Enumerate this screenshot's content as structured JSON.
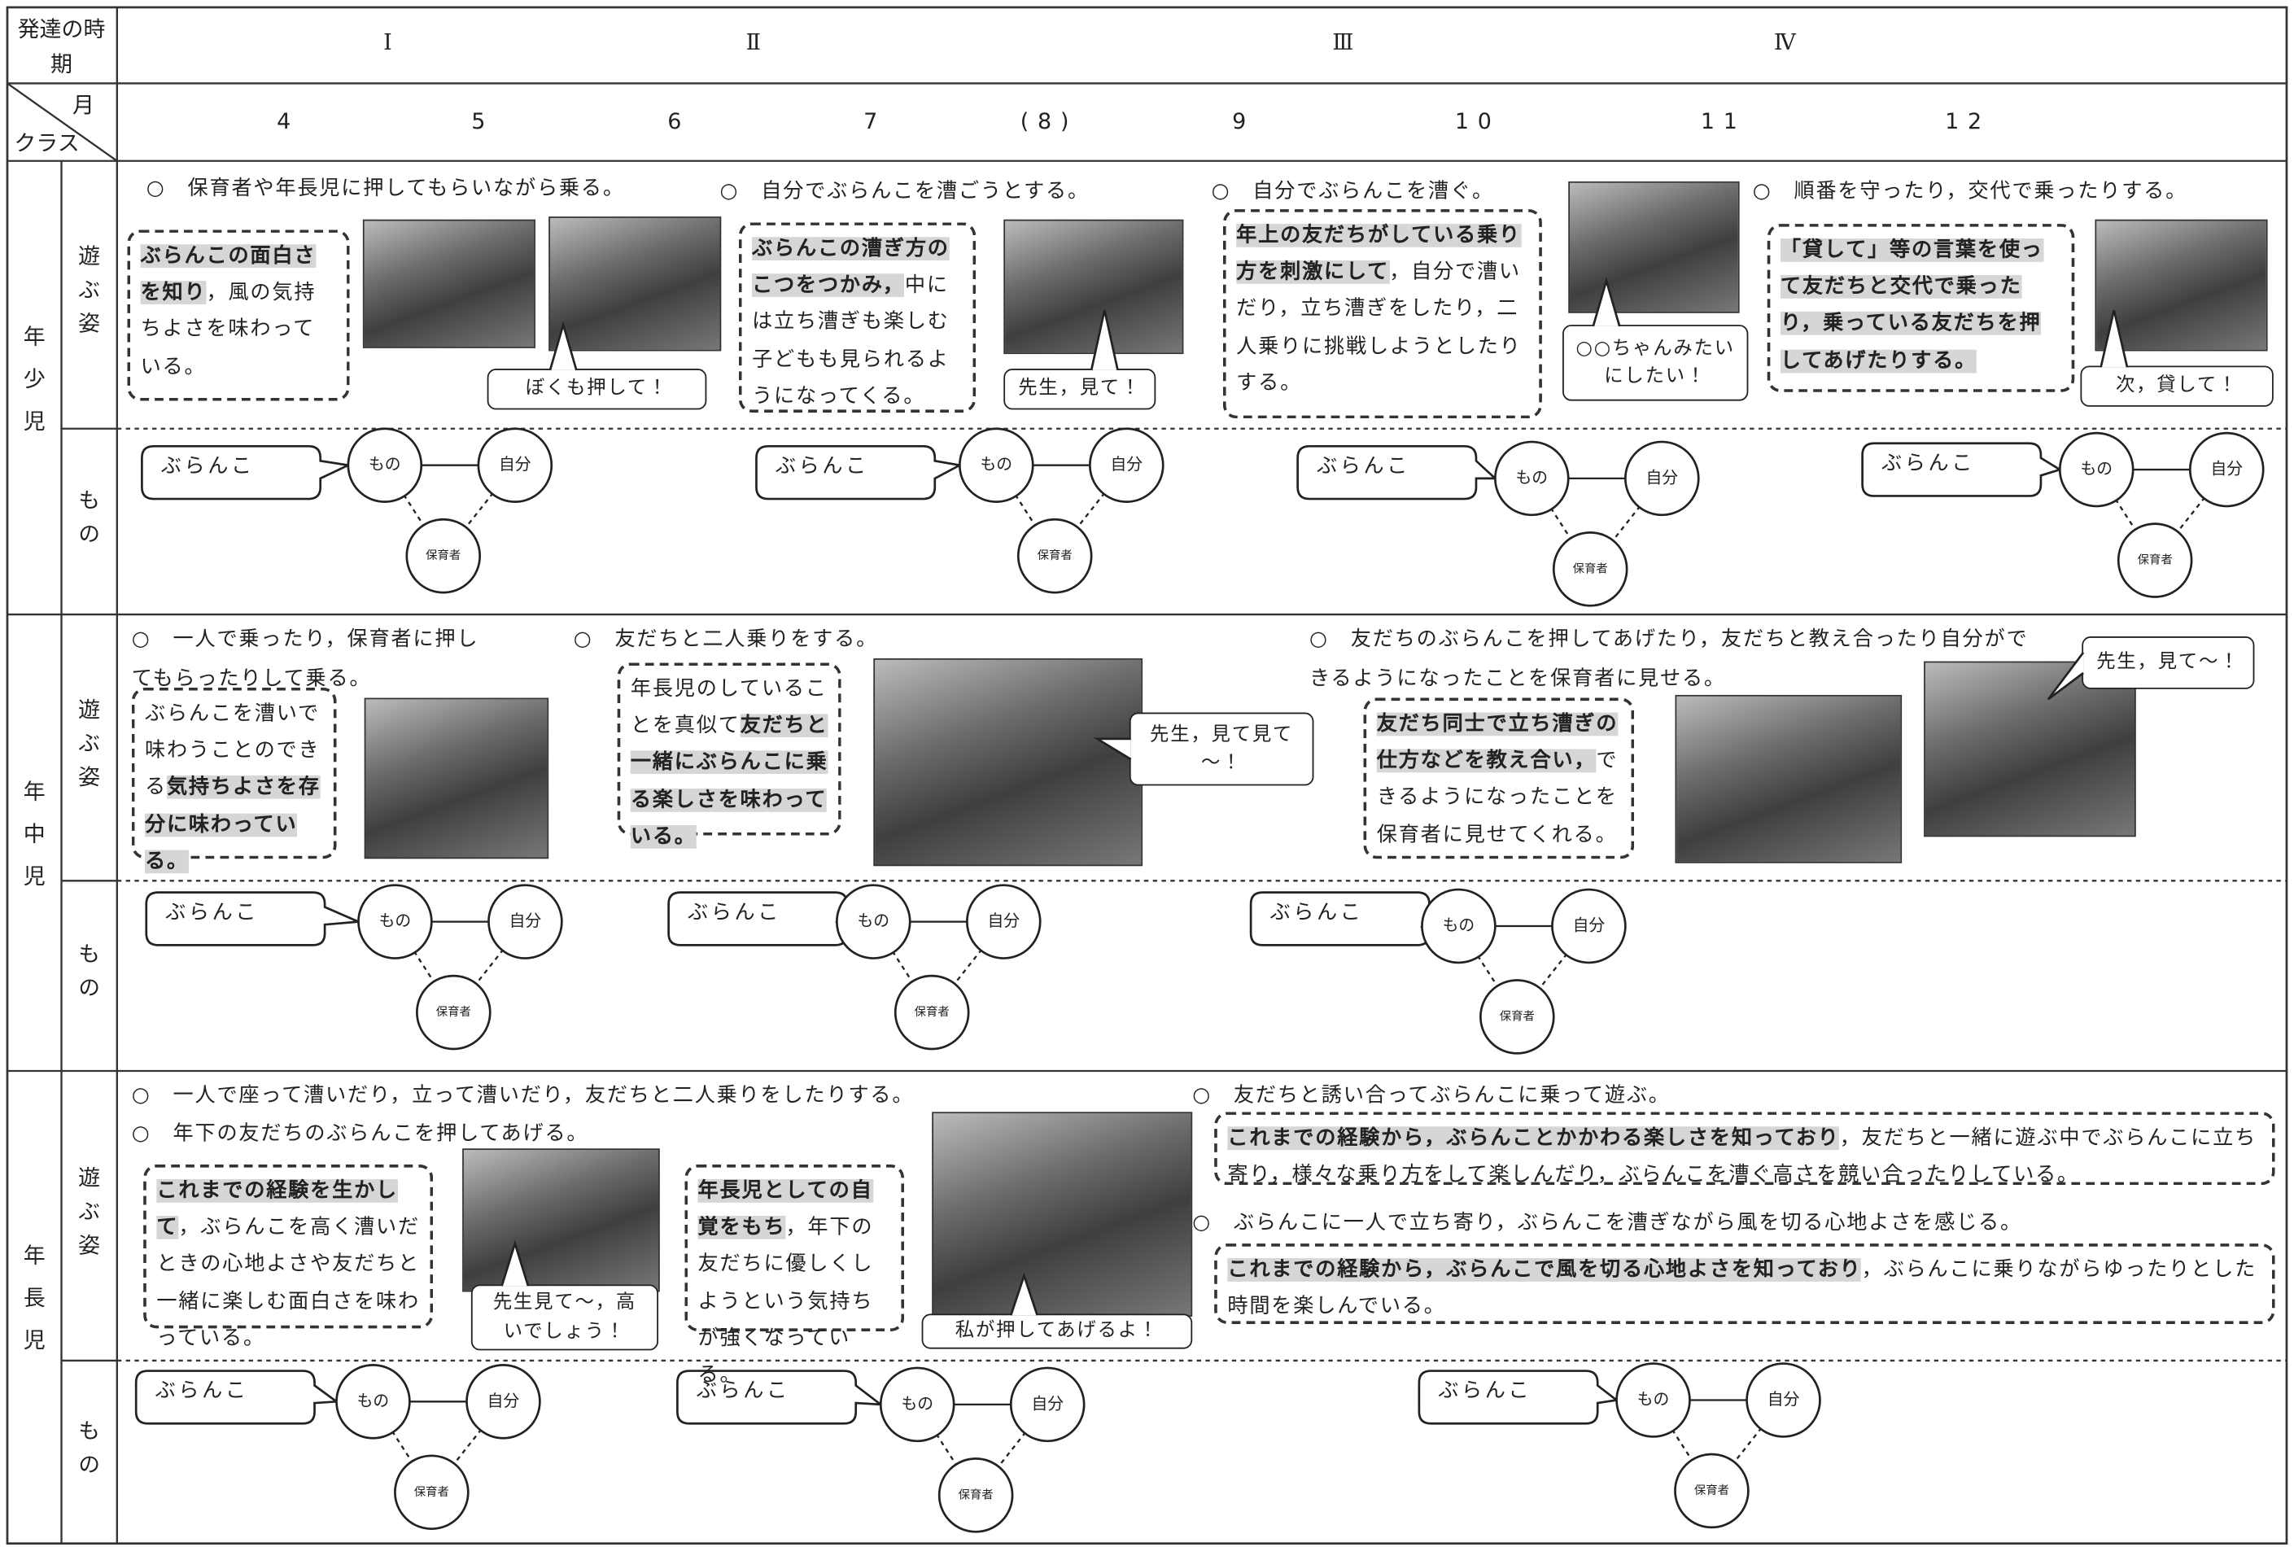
{
  "header": {
    "period_label": "発達の時期",
    "periods": [
      "Ⅰ",
      "Ⅱ",
      "Ⅲ",
      "Ⅳ"
    ],
    "month_label": "月",
    "class_label": "クラス",
    "months": [
      "4",
      "5",
      "6",
      "7",
      "(8)",
      "9",
      "10",
      "11",
      "12"
    ]
  },
  "classes": [
    {
      "name": "年少児",
      "play_label": "遊ぶ姿",
      "mono_label": "もの",
      "bullets": [
        "○　保育者や年長児に押してもらいながら乗る。",
        "○　自分でぶらんこを漕ごうとする。",
        "○　自分でぶらんこを漕ぐ。",
        "○　順番を守ったり，交代で乗ったりする。"
      ],
      "boxes": [
        [
          {
            "text": "ぶらんこの面白さを知り",
            "bold": true
          },
          {
            "text": "，風の気持ちよさを味わっている。",
            "bold": false
          }
        ],
        [
          {
            "text": "ぶらんこの漕ぎ方のこつをつかみ，",
            "bold": true
          },
          {
            "text": "中には立ち漕ぎも楽しむ子どもも見られるようになってくる。",
            "bold": false
          }
        ],
        [
          {
            "text": "年上の友だちがしている乗り方を刺激にして",
            "bold": true
          },
          {
            "text": "，自分で漕いだり，立ち漕ぎをしたり，二人乗りに挑戦しようとしたりする。",
            "bold": false
          }
        ],
        [
          {
            "text": "「貸して」等の言葉を使って友だちと交代で乗ったり，乗っている友だちを押してあげたりする。",
            "bold": true
          }
        ]
      ],
      "bubbles": [
        "ぼくも押して！",
        "先生，見て！",
        "○○ちゃんみたいにしたい！",
        "次，貸して！"
      ],
      "diagrams": [
        {
          "callout": "ぶらんこ",
          "nodes": [
            "もの",
            "自分",
            "保育者"
          ]
        },
        {
          "callout": "ぶらんこ",
          "nodes": [
            "もの",
            "自分",
            "保育者"
          ]
        },
        {
          "callout": "ぶらんこ",
          "nodes": [
            "もの",
            "自分",
            "保育者"
          ]
        },
        {
          "callout": "ぶらんこ",
          "nodes": [
            "もの",
            "自分",
            "保育者"
          ]
        }
      ]
    },
    {
      "name": "年中児",
      "play_label": "遊ぶ姿",
      "mono_label": "もの",
      "bullets": [
        "○　一人で乗ったり，保育者に押してもらったりして乗る。",
        "○　友だちと二人乗りをする。",
        "○　友だちのぶらんこを押してあげたり，友だちと教え合ったり自分ができるようになったことを保育者に見せる。"
      ],
      "boxes": [
        [
          {
            "text": "ぶらんこを漕いで味わうことのできる",
            "bold": false
          },
          {
            "text": "気持ちよさを存分に味わっている。",
            "bold": true
          }
        ],
        [
          {
            "text": "年長児のしていることを真似て",
            "bold": false
          },
          {
            "text": "友だちと一緒にぶらんこに乗る楽しさを味わっている。",
            "bold": true
          }
        ],
        [
          {
            "text": "友だち同士で立ち漕ぎの仕方などを教え合い，",
            "bold": true
          },
          {
            "text": "できるようになったことを保育者に見せてくれる。",
            "bold": false
          }
        ]
      ],
      "bubbles": [
        "先生，見て見て～！",
        "先生，見て～！"
      ],
      "diagrams": [
        {
          "callout": "ぶらんこ",
          "nodes": [
            "もの",
            "自分",
            "保育者"
          ]
        },
        {
          "callout": "ぶらんこ",
          "nodes": [
            "もの",
            "自分",
            "保育者"
          ]
        },
        {
          "callout": "ぶらんこ",
          "nodes": [
            "もの",
            "自分",
            "保育者"
          ]
        }
      ]
    },
    {
      "name": "年長児",
      "play_label": "遊ぶ姿",
      "mono_label": "もの",
      "bullets": [
        "○　一人で座って漕いだり，立って漕いだり，友だちと二人乗りをしたりする。",
        "○　年下の友だちのぶらんこを押してあげる。",
        "○　友だちと誘い合ってぶらんこに乗って遊ぶ。",
        "○　ぶらんこに一人で立ち寄り，ぶらんこを漕ぎながら風を切る心地よさを感じる。"
      ],
      "boxes": [
        [
          {
            "text": "これまでの経験を生かして",
            "bold": true
          },
          {
            "text": "，ぶらんこを高く漕いだときの心地よさや友だちと一緒に楽しむ面白さを味わっている。",
            "bold": false
          }
        ],
        [
          {
            "text": "年長児としての自覚をもち",
            "bold": true
          },
          {
            "text": "，年下の友だちに優しくしようという気持ちが強くなっている。",
            "bold": false
          }
        ],
        [
          {
            "text": "これまでの経験から，ぶらんことかかわる楽しさを知っており",
            "bold": true
          },
          {
            "text": "，友だちと一緒に遊ぶ中でぶらんこに立ち寄り，様々な乗り方をして楽しんだり，ぶらんこを漕ぐ高さを競い合ったりしている。",
            "bold": false
          }
        ],
        [
          {
            "text": "これまでの経験から，ぶらんこで風を切る心地よさを知っており",
            "bold": true
          },
          {
            "text": "，ぶらんこに乗りながらゆったりとした時間を楽しんでいる。",
            "bold": false
          }
        ]
      ],
      "bubbles": [
        "先生見て～，高いでしょう！",
        "私が押してあげるよ！"
      ],
      "diagrams": [
        {
          "callout": "ぶらんこ",
          "nodes": [
            "もの",
            "自分",
            "保育者"
          ]
        },
        {
          "callout": "ぶらんこ",
          "nodes": [
            "もの",
            "自分",
            "保育者"
          ]
        },
        {
          "callout": "ぶらんこ",
          "nodes": [
            "もの",
            "自分",
            "保育者"
          ]
        }
      ]
    }
  ]
}
